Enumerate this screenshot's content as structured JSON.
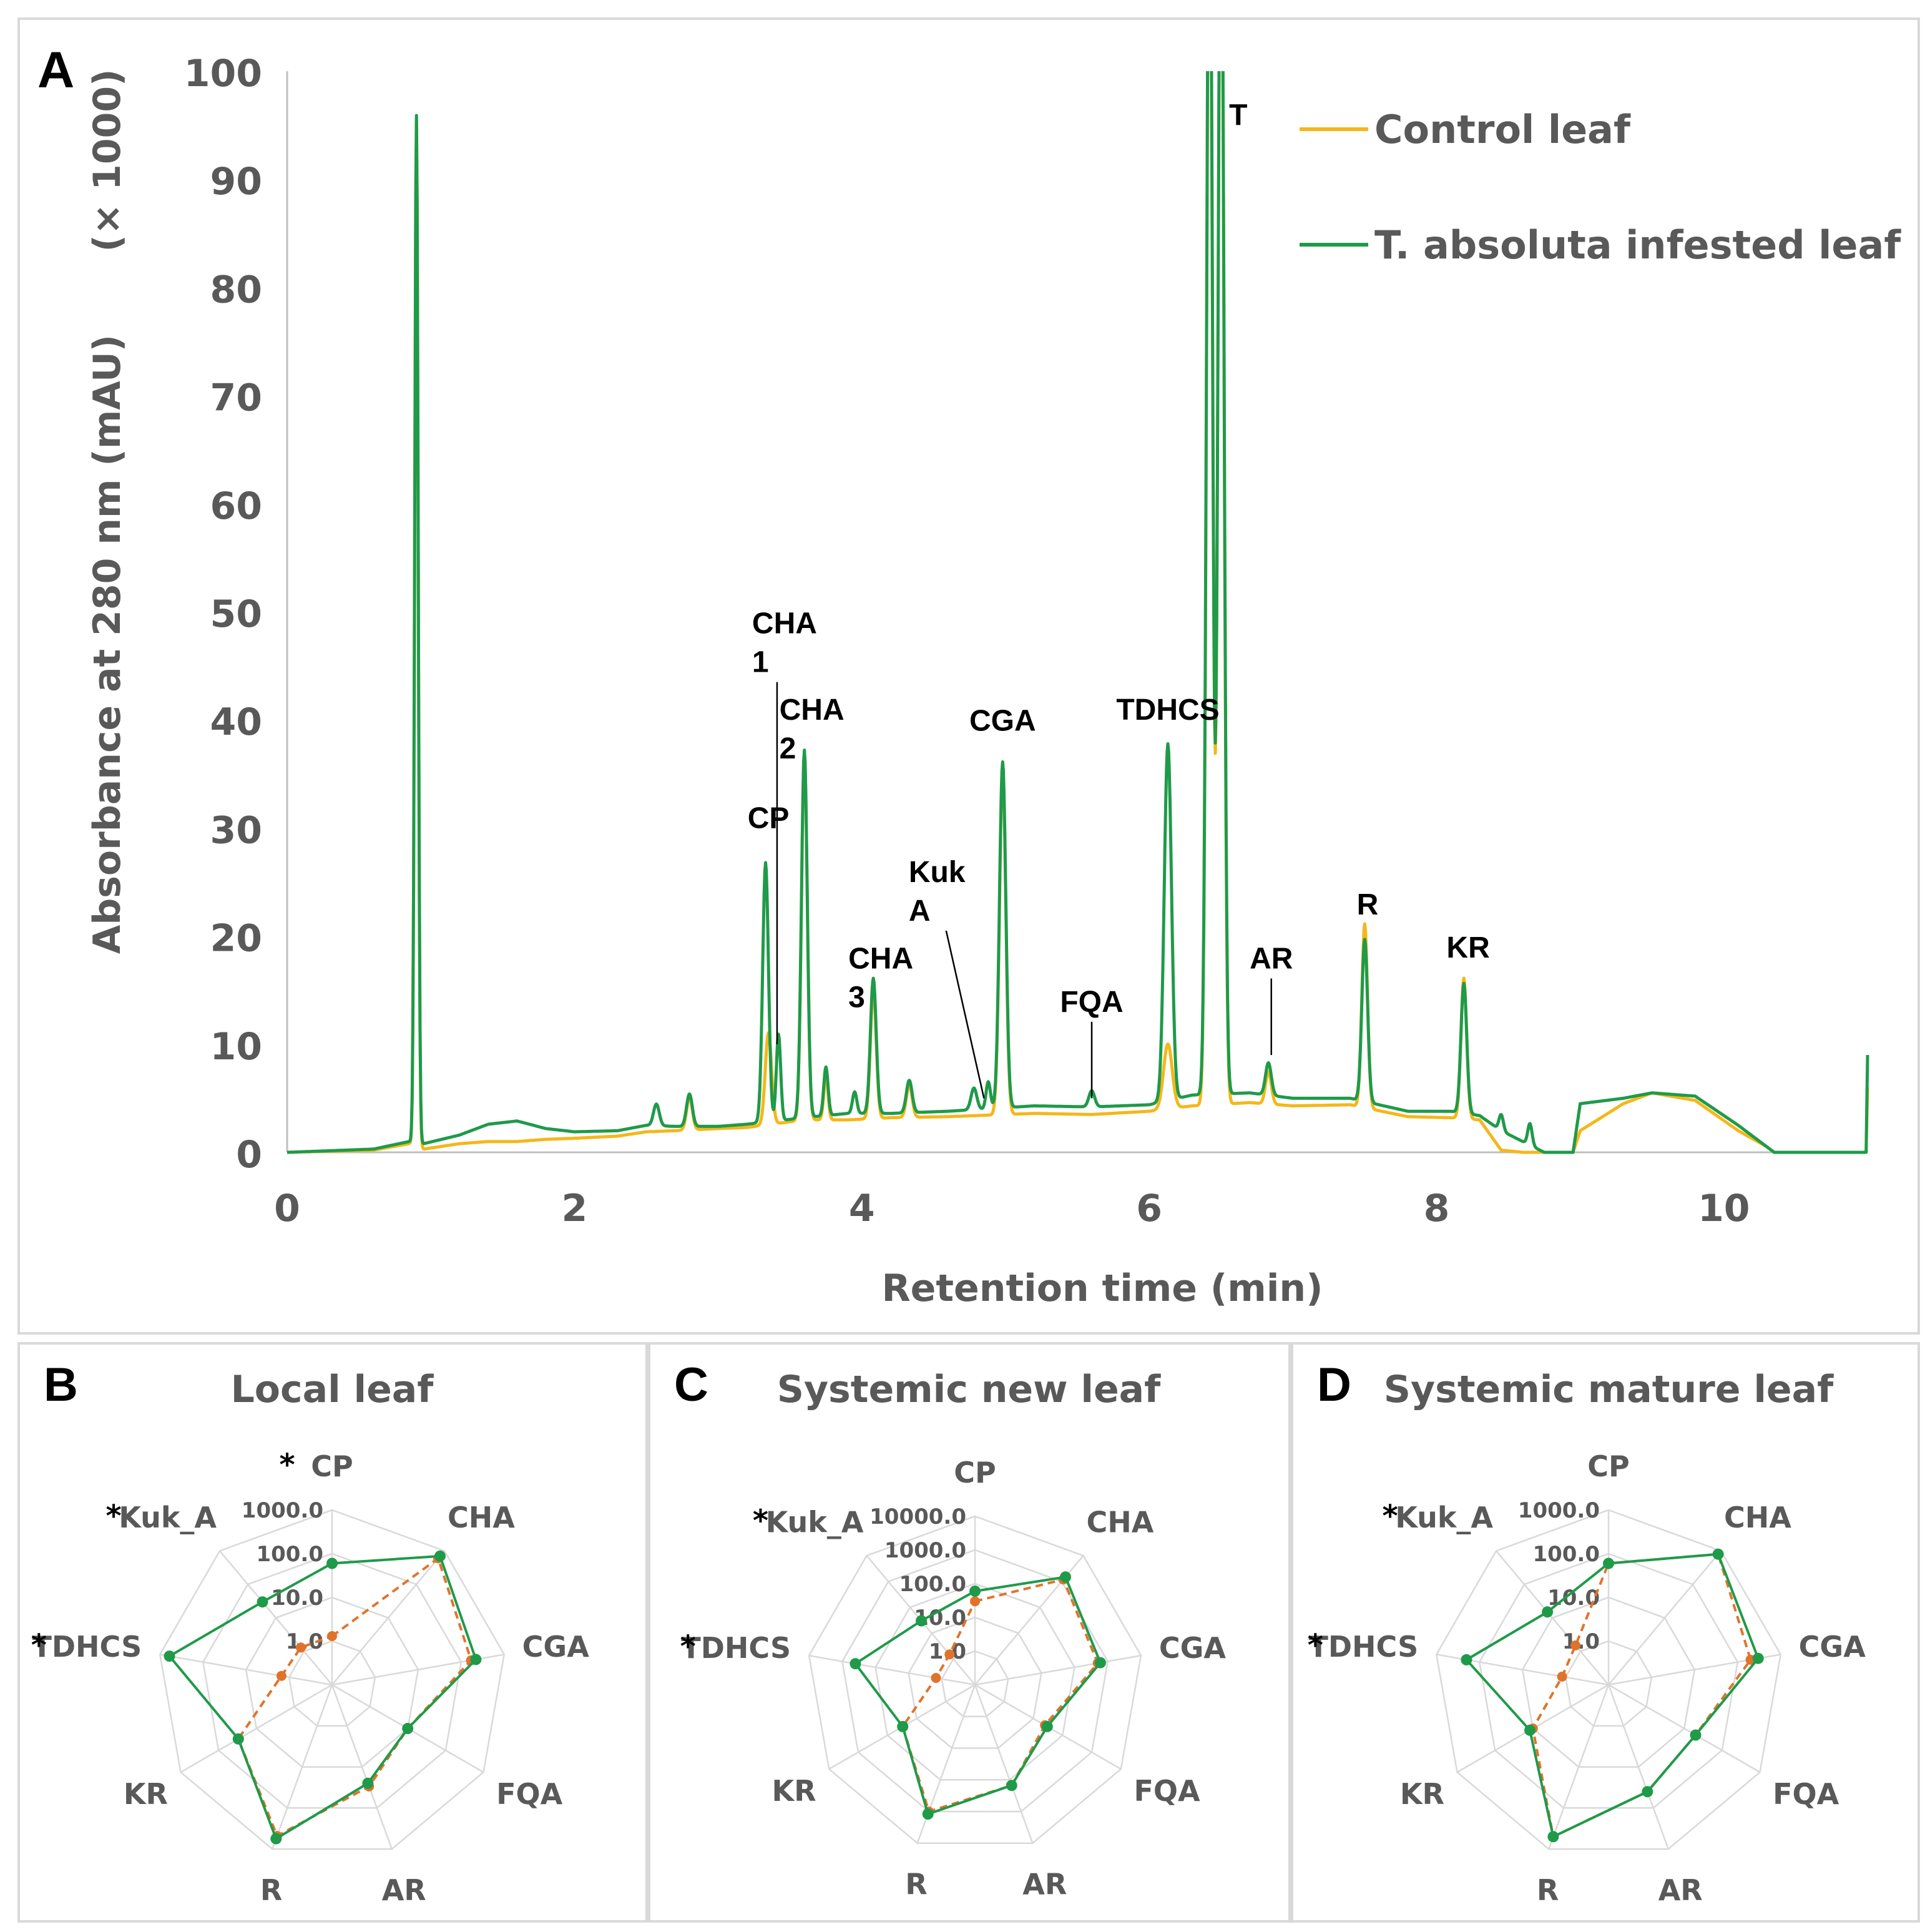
{
  "figure_label": "Chromatogram and radar comparison",
  "chart_data": [
    {
      "id": "A",
      "panel_letter": "A",
      "type": "line",
      "title": "",
      "xlabel": "Retention time (min)",
      "ylabel": "Absorbance at 280 nm (mAU)",
      "ylabel_scale": "(× 1000)",
      "xlim": [
        0,
        11
      ],
      "ylim": [
        0,
        100
      ],
      "xticks": [
        0,
        2,
        4,
        6,
        8,
        10
      ],
      "yticks": [
        0,
        10,
        20,
        30,
        40,
        50,
        60,
        70,
        80,
        90,
        100
      ],
      "legend": {
        "placement": "top-right",
        "entries": [
          "Control leaf",
          "T. absoluta infested leaf"
        ]
      },
      "series": [
        {
          "name": "Control leaf",
          "color": "#f4b71a",
          "baseline": [
            [
              0,
              0
            ],
            [
              0.6,
              0.2
            ],
            [
              0.85,
              0.8
            ],
            [
              0.95,
              0.3
            ],
            [
              1.2,
              0.8
            ],
            [
              1.4,
              1.0
            ],
            [
              1.6,
              1.0
            ],
            [
              1.8,
              1.2
            ],
            [
              2.0,
              1.3
            ],
            [
              2.3,
              1.5
            ],
            [
              2.5,
              1.9
            ],
            [
              2.7,
              2.0
            ],
            [
              3.0,
              2.2
            ],
            [
              3.2,
              2.3
            ],
            [
              3.6,
              3.0
            ],
            [
              3.9,
              3.0
            ],
            [
              4.2,
              3.2
            ],
            [
              4.6,
              3.3
            ],
            [
              5.2,
              3.6
            ],
            [
              5.6,
              3.5
            ],
            [
              6.0,
              3.8
            ],
            [
              6.3,
              4.3
            ],
            [
              6.7,
              4.6
            ],
            [
              7.0,
              4.3
            ],
            [
              7.4,
              4.4
            ],
            [
              7.8,
              3.3
            ],
            [
              8.1,
              3.2
            ],
            [
              8.3,
              3.0
            ],
            [
              8.45,
              0.2
            ],
            [
              8.6,
              0.0
            ],
            [
              8.95,
              0.0
            ],
            [
              9.0,
              2.0
            ],
            [
              9.3,
              4.5
            ],
            [
              9.5,
              5.5
            ],
            [
              9.8,
              4.8
            ],
            [
              10.1,
              2.0
            ],
            [
              10.3,
              0.5
            ],
            [
              10.35,
              0.0
            ],
            [
              10.99,
              0.0
            ],
            [
              11.0,
              6.0
            ]
          ],
          "peaks": [
            [
              0.9,
              95,
              0.012
            ],
            [
              2.8,
              3,
              0.02
            ],
            [
              3.35,
              8.5,
              0.022
            ],
            [
              3.6,
              34,
              0.02
            ],
            [
              3.75,
              4,
              0.015
            ],
            [
              4.08,
              12,
              0.02
            ],
            [
              4.33,
              3,
              0.02
            ],
            [
              4.98,
              32,
              0.022
            ],
            [
              6.13,
              6,
              0.03
            ],
            [
              6.42,
              120,
              0.02
            ],
            [
              6.5,
              120,
              0.02
            ],
            [
              6.83,
              3,
              0.02
            ],
            [
              7.5,
              17,
              0.02
            ],
            [
              8.19,
              13,
              0.02
            ]
          ]
        },
        {
          "name": "T. absoluta infested leaf",
          "color": "#1f9a49",
          "baseline": [
            [
              0,
              0
            ],
            [
              0.6,
              0.3
            ],
            [
              0.85,
              1.0
            ],
            [
              0.95,
              0.8
            ],
            [
              1.2,
              1.6
            ],
            [
              1.4,
              2.6
            ],
            [
              1.6,
              2.9
            ],
            [
              1.8,
              2.2
            ],
            [
              2.0,
              1.9
            ],
            [
              2.3,
              2.0
            ],
            [
              2.5,
              2.5
            ],
            [
              2.7,
              2.4
            ],
            [
              3.0,
              2.4
            ],
            [
              3.2,
              2.6
            ],
            [
              3.6,
              3.2
            ],
            [
              3.9,
              3.6
            ],
            [
              4.2,
              3.6
            ],
            [
              4.6,
              3.8
            ],
            [
              5.2,
              4.3
            ],
            [
              5.6,
              4.2
            ],
            [
              6.0,
              4.4
            ],
            [
              6.3,
              5.3
            ],
            [
              6.7,
              5.5
            ],
            [
              7.0,
              5.0
            ],
            [
              7.4,
              5.0
            ],
            [
              7.8,
              3.8
            ],
            [
              8.1,
              3.8
            ],
            [
              8.3,
              3.4
            ],
            [
              8.45,
              2.0
            ],
            [
              8.6,
              1.0
            ],
            [
              8.75,
              0.0
            ],
            [
              8.95,
              0.0
            ],
            [
              9.0,
              4.5
            ],
            [
              9.3,
              5.0
            ],
            [
              9.5,
              5.5
            ],
            [
              9.8,
              5.2
            ],
            [
              10.1,
              2.5
            ],
            [
              10.3,
              0.5
            ],
            [
              10.35,
              0.0
            ],
            [
              10.99,
              0.0
            ],
            [
              11.0,
              9.0
            ]
          ],
          "peaks": [
            [
              0.9,
              95,
              0.012
            ],
            [
              2.57,
              2,
              0.02
            ],
            [
              2.8,
              3,
              0.02
            ],
            [
              3.33,
              24,
              0.02
            ],
            [
              3.42,
              8,
              0.015
            ],
            [
              3.6,
              34,
              0.02
            ],
            [
              3.75,
              4.5,
              0.015
            ],
            [
              3.95,
              2,
              0.015
            ],
            [
              4.08,
              12.5,
              0.02
            ],
            [
              4.33,
              3,
              0.02
            ],
            [
              4.78,
              2,
              0.02
            ],
            [
              4.88,
              2.5,
              0.015
            ],
            [
              4.98,
              32,
              0.022
            ],
            [
              5.6,
              1.5,
              0.02
            ],
            [
              6.13,
              33,
              0.025
            ],
            [
              6.42,
              120,
              0.02
            ],
            [
              6.5,
              120,
              0.02
            ],
            [
              6.83,
              3,
              0.02
            ],
            [
              7.5,
              15,
              0.02
            ],
            [
              8.19,
              12,
              0.02
            ],
            [
              8.45,
              1.5,
              0.015
            ],
            [
              8.65,
              2.0,
              0.015
            ]
          ]
        }
      ],
      "peak_labels": [
        {
          "name": "CP",
          "lines": [
            "CP"
          ],
          "rt": 3.35,
          "height": 30
        },
        {
          "name": "CHA 1",
          "lines": [
            "CHA",
            "1"
          ],
          "rt": 3.41,
          "height": 48,
          "leader_to": 10
        },
        {
          "name": "CHA 2",
          "lines": [
            "CHA",
            "2"
          ],
          "rt": 3.6,
          "height": 40
        },
        {
          "name": "CHA 3",
          "lines": [
            "CHA",
            "3"
          ],
          "rt": 4.08,
          "height": 17
        },
        {
          "name": "Kuk A",
          "lines": [
            "Kuk",
            "A"
          ],
          "rt": 4.5,
          "height": 25,
          "leader_to": 5
        },
        {
          "name": "CGA",
          "lines": [
            "CGA"
          ],
          "rt": 4.98,
          "height": 39
        },
        {
          "name": "FQA",
          "lines": [
            "FQA"
          ],
          "rt": 5.6,
          "height": 13,
          "leader_to": 5
        },
        {
          "name": "TDHCS",
          "lines": [
            "TDHCS"
          ],
          "rt": 6.13,
          "height": 40
        },
        {
          "name": "T",
          "lines": [
            "T"
          ],
          "rt": 6.62,
          "height": 95
        },
        {
          "name": "AR",
          "lines": [
            "AR"
          ],
          "rt": 6.85,
          "height": 17,
          "leader_to": 9
        },
        {
          "name": "R",
          "lines": [
            "R"
          ],
          "rt": 7.52,
          "height": 22
        },
        {
          "name": "KR",
          "lines": [
            "KR"
          ],
          "rt": 8.22,
          "height": 18
        }
      ]
    },
    {
      "id": "B",
      "panel_letter": "B",
      "type": "radar",
      "title": "Local leaf",
      "scale": "log10",
      "max": 1000.0,
      "ring_labels": [
        "1000.0",
        "100.0",
        "10.0",
        "1.0"
      ],
      "categories": [
        "CP",
        "CHA",
        "CGA",
        "FQA",
        "AR",
        "R",
        "KR",
        "TDHCS",
        "Kuk_A"
      ],
      "starred": [
        "CP",
        "TDHCS",
        "Kuk_A"
      ],
      "series": [
        {
          "name": "Control leaf",
          "color": "#e0732b",
          "style": "dashed",
          "values": [
            1.3,
            600,
            170,
            10,
            30,
            480,
            30,
            1.5,
            1.3
          ]
        },
        {
          "name": "T. absoluta infested leaf",
          "color": "#1f9a49",
          "style": "solid",
          "values": [
            60,
            700,
            220,
            10,
            25,
            560,
            30,
            600,
            30
          ]
        }
      ]
    },
    {
      "id": "C",
      "panel_letter": "C",
      "type": "radar",
      "title": "Systemic new leaf",
      "scale": "log10",
      "max": 10000.0,
      "ring_labels": [
        "10000.0",
        "1000.0",
        "100.0",
        "10.0",
        "1.0"
      ],
      "categories": [
        "CP",
        "CHA",
        "CGA",
        "FQA",
        "AR",
        "R",
        "KR",
        "TDHCS",
        "Kuk_A"
      ],
      "starred": [
        "Kuk_A",
        "TDHCS"
      ],
      "series": [
        {
          "name": "Control leaf",
          "color": "#e0732b",
          "style": "dashed",
          "values": [
            30,
            1200,
            500,
            25,
            150,
            1000,
            30,
            1.5,
            1.5
          ]
        },
        {
          "name": "T. absoluta infested leaf",
          "color": "#1f9a49",
          "style": "solid",
          "values": [
            60,
            1500,
            600,
            30,
            150,
            1200,
            30,
            400,
            30
          ]
        }
      ]
    },
    {
      "id": "D",
      "panel_letter": "D",
      "type": "radar",
      "title": "Systemic mature leaf",
      "scale": "log10",
      "max": 1000.0,
      "ring_labels": [
        "1000.0",
        "100.0",
        "10.0",
        "1.0"
      ],
      "categories": [
        "CP",
        "CHA",
        "CGA",
        "FQA",
        "AR",
        "R",
        "KR",
        "TDHCS",
        "Kuk_A"
      ],
      "starred": [
        "Kuk_A",
        "TDHCS"
      ],
      "series": [
        {
          "name": "Control leaf",
          "color": "#e0732b",
          "style": "dashed",
          "values": [
            60,
            800,
            200,
            20,
            40,
            500,
            10,
            1.2,
            1.5
          ]
        },
        {
          "name": "T. absoluta infested leaf",
          "color": "#1f9a49",
          "style": "solid",
          "values": [
            60,
            800,
            300,
            20,
            40,
            500,
            12,
            200,
            15
          ]
        }
      ]
    }
  ]
}
